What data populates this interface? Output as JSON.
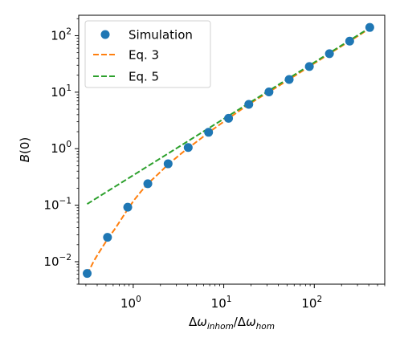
{
  "chart_data": {
    "type": "scatter",
    "title": "",
    "xlabel": "Δω_inhom/Δω_hom",
    "ylabel": "B(0)",
    "xscale": "log",
    "yscale": "log",
    "xlim": [
      0.25,
      600
    ],
    "ylim": [
      0.004,
      230
    ],
    "grid": false,
    "legend_position": "top-left",
    "x_ticks": [
      {
        "value": 1,
        "base": "10",
        "exp": "0"
      },
      {
        "value": 10,
        "base": "10",
        "exp": "1"
      },
      {
        "value": 100,
        "base": "10",
        "exp": "2"
      }
    ],
    "y_ticks": [
      {
        "value": 0.01,
        "base": "10",
        "exp": "−2"
      },
      {
        "value": 0.1,
        "base": "10",
        "exp": "−1"
      },
      {
        "value": 1,
        "base": "10",
        "exp": "0"
      },
      {
        "value": 10,
        "base": "10",
        "exp": "1"
      },
      {
        "value": 100,
        "base": "10",
        "exp": "2"
      }
    ],
    "series": [
      {
        "name": "Simulation",
        "kind": "scatter",
        "color": "#1f77b4",
        "x": [
          0.31,
          0.52,
          0.87,
          1.45,
          2.43,
          4.05,
          6.8,
          11.3,
          18.9,
          31.6,
          52.8,
          88.2,
          147,
          246,
          410
        ],
        "y": [
          0.0062,
          0.027,
          0.092,
          0.24,
          0.54,
          1.05,
          1.95,
          3.45,
          6.1,
          10.1,
          16.8,
          28.5,
          48,
          80,
          140
        ]
      },
      {
        "name": "Eq. 3",
        "kind": "line",
        "style": "dashed",
        "color": "#ff7f0e",
        "x": [
          0.31,
          0.37,
          0.44,
          0.52,
          0.62,
          0.73,
          0.87,
          1.03,
          1.22,
          1.45,
          1.72,
          2.04,
          2.43,
          2.88,
          3.42,
          4.05,
          4.8,
          5.7,
          6.8,
          8.5,
          11.3,
          14.5,
          18.9,
          24.5,
          31.6,
          41,
          52.8,
          68,
          88.2,
          114,
          147,
          190,
          246,
          320,
          410
        ],
        "y": [
          0.006,
          0.0105,
          0.0165,
          0.025,
          0.037,
          0.055,
          0.085,
          0.125,
          0.175,
          0.24,
          0.31,
          0.4,
          0.53,
          0.66,
          0.83,
          1.03,
          1.26,
          1.55,
          1.93,
          2.5,
          3.45,
          4.55,
          6.1,
          7.9,
          10.1,
          13.1,
          16.9,
          21.8,
          28.5,
          37,
          48,
          62,
          80,
          104,
          136
        ]
      },
      {
        "name": "Eq. 5",
        "kind": "line",
        "style": "dashed",
        "color": "#2ca02c",
        "x": [
          0.31,
          410
        ],
        "y": [
          0.105,
          138
        ]
      }
    ]
  }
}
